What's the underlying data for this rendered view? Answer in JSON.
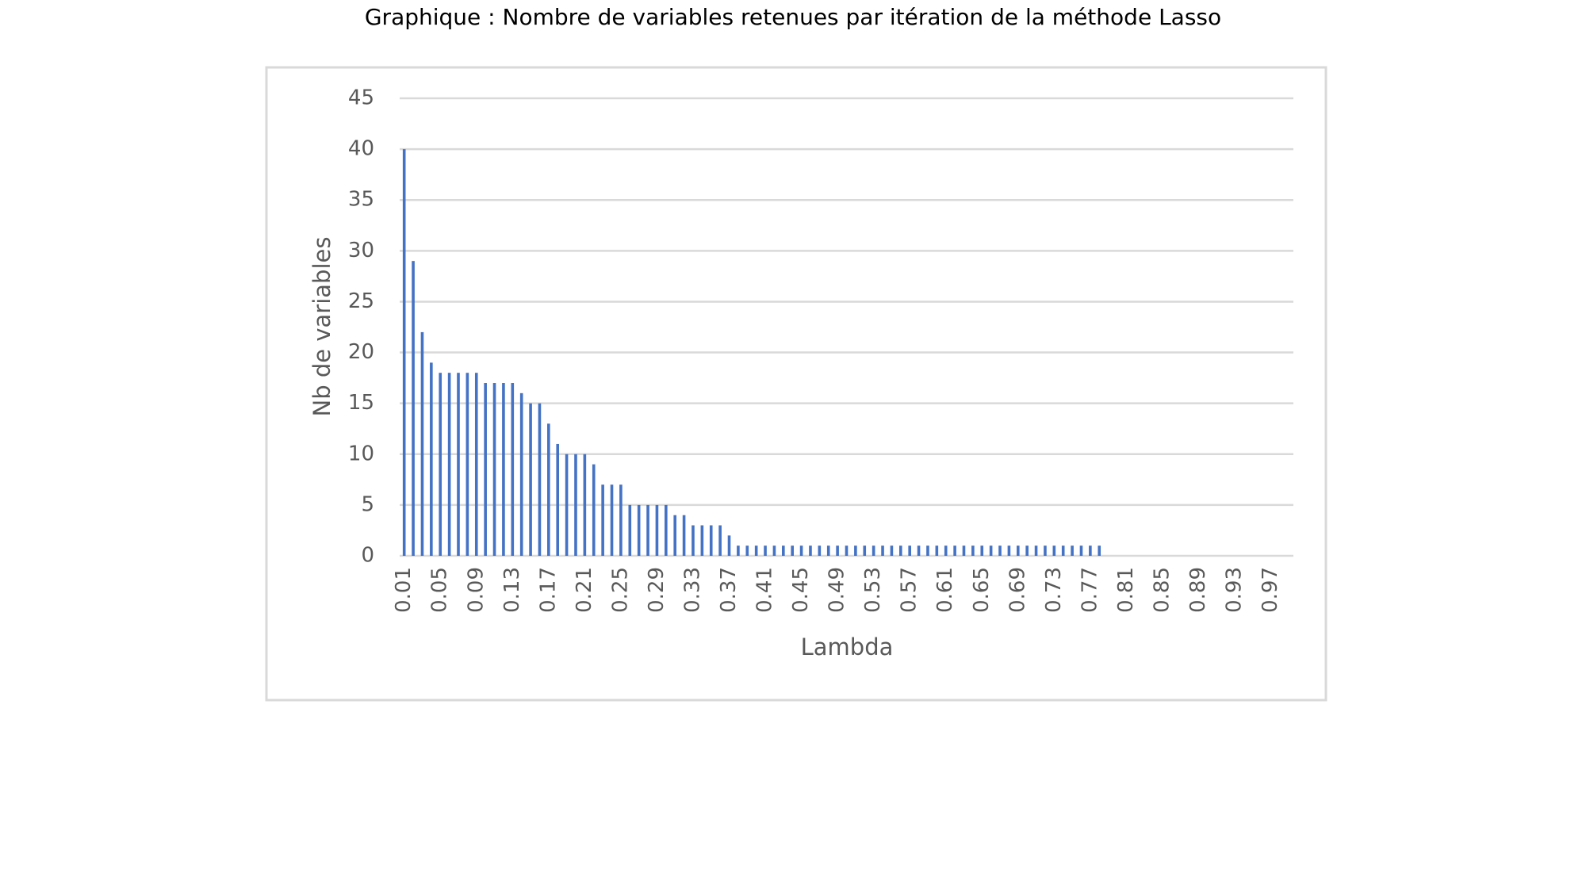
{
  "chart_data": {
    "type": "bar",
    "title": "Graphique : Nombre de variables retenues par itération de la méthode Lasso",
    "x_label": "Lambda",
    "y_label": "Nb de variables",
    "categories": [
      "0.01",
      null,
      null,
      null,
      "0.05",
      null,
      null,
      null,
      "0.09",
      null,
      null,
      null,
      "0.13",
      null,
      null,
      null,
      "0.17",
      null,
      null,
      null,
      "0.21",
      null,
      null,
      null,
      "0.25",
      null,
      null,
      null,
      "0.29",
      null,
      null,
      null,
      "0.33",
      null,
      null,
      null,
      "0.37",
      null,
      null,
      null,
      "0.41",
      null,
      null,
      null,
      "0.45",
      null,
      null,
      null,
      "0.49",
      null,
      null,
      null,
      "0.53",
      null,
      null,
      null,
      "0.57",
      null,
      null,
      null,
      "0.61",
      null,
      null,
      null,
      "0.65",
      null,
      null,
      null,
      "0.69",
      null,
      null,
      null,
      "0.73",
      null,
      null,
      null,
      "0.77",
      null,
      null,
      null,
      "0.81",
      null,
      null,
      null,
      "0.85",
      null,
      null,
      null,
      "0.89",
      null,
      null,
      null,
      "0.93",
      null,
      null,
      null,
      "0.97",
      null,
      null
    ],
    "values": [
      40,
      29,
      22,
      19,
      18,
      18,
      18,
      18,
      18,
      17,
      17,
      17,
      17,
      16,
      15,
      15,
      13,
      11,
      10,
      10,
      10,
      9,
      7,
      7,
      7,
      5,
      5,
      5,
      5,
      5,
      4,
      4,
      3,
      3,
      3,
      3,
      2,
      1,
      1,
      1,
      1,
      1,
      1,
      1,
      1,
      1,
      1,
      1,
      1,
      1,
      1,
      1,
      1,
      1,
      1,
      1,
      1,
      1,
      1,
      1,
      1,
      1,
      1,
      1,
      1,
      1,
      1,
      1,
      1,
      1,
      1,
      1,
      1,
      1,
      1,
      1,
      1,
      1,
      0,
      0,
      0,
      0,
      0,
      0,
      0,
      0,
      0,
      0,
      0,
      0,
      0,
      0,
      0,
      0,
      0,
      0,
      0,
      0,
      0
    ],
    "color": "#4472c4",
    "ylim": [
      0,
      45
    ],
    "yticks": [
      0,
      5,
      10,
      15,
      20,
      25,
      30,
      35,
      40,
      45
    ],
    "grid": true
  }
}
